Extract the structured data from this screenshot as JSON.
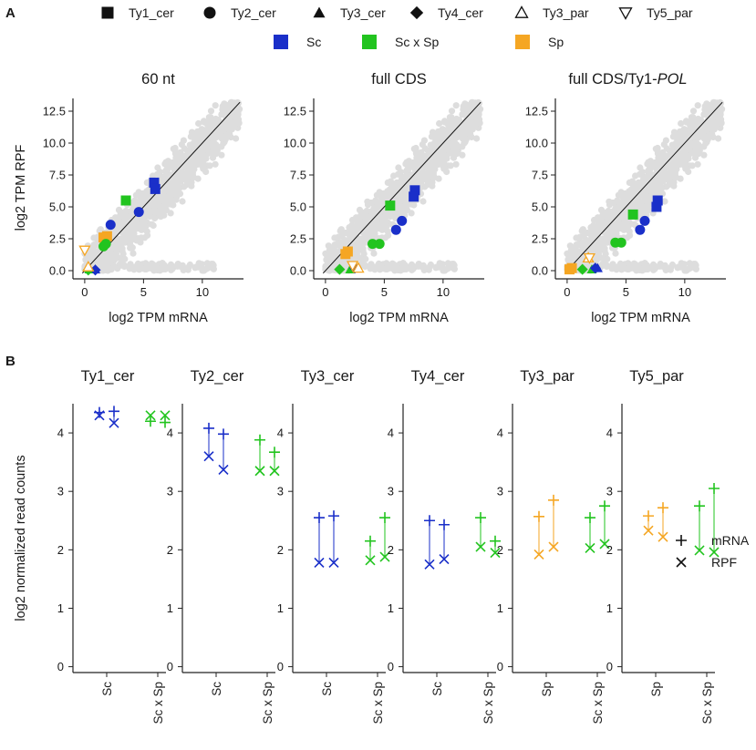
{
  "panel_labels": {
    "a": "A",
    "b": "B"
  },
  "colors": {
    "Sc": "#1a2fc9",
    "ScxSp": "#22c41f",
    "Sp": "#f5a623",
    "background": "#dddddd",
    "axis": "#222222"
  },
  "legend": {
    "markers": [
      {
        "label": "Ty1_cer",
        "marker": "square-icon"
      },
      {
        "label": "Ty2_cer",
        "marker": "circle-icon"
      },
      {
        "label": "Ty3_cer",
        "marker": "triangle-up-icon"
      },
      {
        "label": "Ty4_cer",
        "marker": "diamond-icon"
      },
      {
        "label": "Ty3_par",
        "marker": "triangle-up-open-icon"
      },
      {
        "label": "Ty5_par",
        "marker": "triangle-down-open-icon"
      }
    ],
    "groups": [
      {
        "label": "Sc",
        "color": "#1a2fc9"
      },
      {
        "label": "Sc x Sp",
        "color": "#22c41f"
      },
      {
        "label": "Sp",
        "color": "#f5a623"
      }
    ]
  },
  "chart_data": [
    {
      "id": "a1",
      "type": "scatter",
      "title": "60 nt",
      "title_italic": "",
      "xlabel": "log2 TPM mRNA",
      "ylabel": "log2 TPM RPF",
      "xlim": [
        -1,
        13.5
      ],
      "ylim": [
        -0.5,
        13.5
      ],
      "xticks": [
        0,
        5,
        10
      ],
      "yticks": [
        0.0,
        2.5,
        5.0,
        7.5,
        10.0,
        12.5
      ],
      "ytick_labels": [
        "0.0",
        "2.5",
        "5.0",
        "7.5",
        "10.0",
        "12.5"
      ],
      "background_genes": "genome-wide cloud",
      "diagonal": "y = x",
      "points": [
        {
          "te": "Ty1_cer",
          "group": "Sc",
          "x": 5.9,
          "y": 6.9
        },
        {
          "te": "Ty1_cer",
          "group": "Sc",
          "x": 6.0,
          "y": 6.4
        },
        {
          "te": "Ty1_cer",
          "group": "ScxSp",
          "x": 3.5,
          "y": 5.5
        },
        {
          "te": "Ty1_cer",
          "group": "Sp",
          "x": 1.6,
          "y": 2.6
        },
        {
          "te": "Ty1_cer",
          "group": "Sp",
          "x": 1.9,
          "y": 2.7
        },
        {
          "te": "Ty2_cer",
          "group": "Sc",
          "x": 4.6,
          "y": 4.6
        },
        {
          "te": "Ty2_cer",
          "group": "Sc",
          "x": 2.2,
          "y": 3.6
        },
        {
          "te": "Ty2_cer",
          "group": "ScxSp",
          "x": 1.6,
          "y": 1.9
        },
        {
          "te": "Ty2_cer",
          "group": "ScxSp",
          "x": 1.8,
          "y": 2.1
        },
        {
          "te": "Ty3_cer",
          "group": "Sc",
          "x": 0.9,
          "y": 0.1
        },
        {
          "te": "Ty3_cer",
          "group": "ScxSp",
          "x": 0.4,
          "y": 0.1
        },
        {
          "te": "Ty4_cer",
          "group": "Sc",
          "x": 0.9,
          "y": 0.05
        },
        {
          "te": "Ty4_cer",
          "group": "ScxSp",
          "x": 0.3,
          "y": 0.05
        },
        {
          "te": "Ty3_par",
          "group": "Sp",
          "x": 0.3,
          "y": 0.3
        },
        {
          "te": "Ty5_par",
          "group": "Sp",
          "x": 0.0,
          "y": 1.6
        }
      ]
    },
    {
      "id": "a2",
      "type": "scatter",
      "title": "full CDS",
      "title_italic": "",
      "xlabel": "log2 TPM mRNA",
      "ylabel": "",
      "xlim": [
        -1,
        13.5
      ],
      "ylim": [
        -0.5,
        13.5
      ],
      "xticks": [
        0,
        5,
        10
      ],
      "yticks": [
        0.0,
        2.5,
        5.0,
        7.5,
        10.0,
        12.5
      ],
      "ytick_labels": [
        "0.0",
        "2.5",
        "5.0",
        "7.5",
        "10.0",
        "12.5"
      ],
      "background_genes": "genome-wide cloud",
      "diagonal": "y = x",
      "points": [
        {
          "te": "Ty1_cer",
          "group": "Sc",
          "x": 7.6,
          "y": 6.3
        },
        {
          "te": "Ty1_cer",
          "group": "Sc",
          "x": 7.5,
          "y": 5.8
        },
        {
          "te": "Ty1_cer",
          "group": "ScxSp",
          "x": 5.5,
          "y": 5.1
        },
        {
          "te": "Ty1_cer",
          "group": "Sp",
          "x": 1.9,
          "y": 1.5
        },
        {
          "te": "Ty1_cer",
          "group": "Sp",
          "x": 1.7,
          "y": 1.3
        },
        {
          "te": "Ty2_cer",
          "group": "Sc",
          "x": 6.5,
          "y": 3.9
        },
        {
          "te": "Ty2_cer",
          "group": "Sc",
          "x": 6.0,
          "y": 3.2
        },
        {
          "te": "Ty2_cer",
          "group": "ScxSp",
          "x": 4.0,
          "y": 2.1
        },
        {
          "te": "Ty2_cer",
          "group": "ScxSp",
          "x": 4.6,
          "y": 2.1
        },
        {
          "te": "Ty3_cer",
          "group": "Sc",
          "x": 2.6,
          "y": 0.2
        },
        {
          "te": "Ty3_cer",
          "group": "ScxSp",
          "x": 2.1,
          "y": 0.1
        },
        {
          "te": "Ty4_cer",
          "group": "Sc",
          "x": 2.5,
          "y": 0.2
        },
        {
          "te": "Ty4_cer",
          "group": "ScxSp",
          "x": 1.2,
          "y": 0.1
        },
        {
          "te": "Ty3_par",
          "group": "Sp",
          "x": 2.8,
          "y": 0.2
        },
        {
          "te": "Ty5_par",
          "group": "Sp",
          "x": 2.3,
          "y": 0.4
        }
      ]
    },
    {
      "id": "a3",
      "type": "scatter",
      "title": "full CDS/Ty1-",
      "title_italic": "POL",
      "xlabel": "log2 TPM mRNA",
      "ylabel": "",
      "xlim": [
        -1,
        13.5
      ],
      "ylim": [
        -0.5,
        13.5
      ],
      "xticks": [
        0,
        5,
        10
      ],
      "yticks": [
        0.0,
        2.5,
        5.0,
        7.5,
        10.0,
        12.5
      ],
      "ytick_labels": [
        "0.0",
        "2.5",
        "5.0",
        "7.5",
        "10.0",
        "12.5"
      ],
      "background_genes": "genome-wide cloud",
      "diagonal": "y = x",
      "points": [
        {
          "te": "Ty1_cer",
          "group": "Sc",
          "x": 7.7,
          "y": 5.5
        },
        {
          "te": "Ty1_cer",
          "group": "Sc",
          "x": 7.6,
          "y": 5.0
        },
        {
          "te": "Ty1_cer",
          "group": "ScxSp",
          "x": 5.6,
          "y": 4.4
        },
        {
          "te": "Ty1_cer",
          "group": "Sp",
          "x": 0.4,
          "y": 0.2
        },
        {
          "te": "Ty1_cer",
          "group": "Sp",
          "x": 0.2,
          "y": 0.1
        },
        {
          "te": "Ty2_cer",
          "group": "Sc",
          "x": 6.6,
          "y": 3.9
        },
        {
          "te": "Ty2_cer",
          "group": "Sc",
          "x": 6.2,
          "y": 3.2
        },
        {
          "te": "Ty2_cer",
          "group": "ScxSp",
          "x": 4.1,
          "y": 2.2
        },
        {
          "te": "Ty2_cer",
          "group": "ScxSp",
          "x": 4.6,
          "y": 2.2
        },
        {
          "te": "Ty3_cer",
          "group": "Sc",
          "x": 2.6,
          "y": 0.2
        },
        {
          "te": "Ty3_cer",
          "group": "ScxSp",
          "x": 2.1,
          "y": 0.1
        },
        {
          "te": "Ty4_cer",
          "group": "Sc",
          "x": 2.4,
          "y": 0.2
        },
        {
          "te": "Ty4_cer",
          "group": "ScxSp",
          "x": 1.3,
          "y": 0.1
        },
        {
          "te": "Ty3_par",
          "group": "Sp",
          "x": 1.8,
          "y": 1.0
        },
        {
          "te": "Ty5_par",
          "group": "Sp",
          "x": 1.9,
          "y": 1.0
        }
      ]
    },
    {
      "id": "b",
      "type": "dumbbell",
      "ylabel": "log2 normalized read counts",
      "ylim": [
        -0.1,
        4.5
      ],
      "yticks": [
        0,
        1,
        2,
        3,
        4
      ],
      "legend": [
        {
          "symbol": "+",
          "label": "mRNA"
        },
        {
          "symbol": "×",
          "label": "RPF"
        }
      ],
      "panels": [
        {
          "title": "Ty1_cer",
          "categories": [
            "Sc",
            "Sc x Sp"
          ],
          "colors": [
            "Sc",
            "ScxSp"
          ],
          "replicates": [
            [
              {
                "mRNA": 4.35,
                "RPF": 4.3
              },
              {
                "mRNA": 4.37,
                "RPF": 4.17
              }
            ],
            [
              {
                "mRNA": 4.2,
                "RPF": 4.3
              },
              {
                "mRNA": 4.18,
                "RPF": 4.3
              }
            ]
          ]
        },
        {
          "title": "Ty2_cer",
          "categories": [
            "Sc",
            "Sc x Sp"
          ],
          "colors": [
            "Sc",
            "ScxSp"
          ],
          "replicates": [
            [
              {
                "mRNA": 4.08,
                "RPF": 3.6
              },
              {
                "mRNA": 3.98,
                "RPF": 3.37
              }
            ],
            [
              {
                "mRNA": 3.88,
                "RPF": 3.35
              },
              {
                "mRNA": 3.67,
                "RPF": 3.35
              }
            ]
          ]
        },
        {
          "title": "Ty3_cer",
          "categories": [
            "Sc",
            "Sc x Sp"
          ],
          "colors": [
            "Sc",
            "ScxSp"
          ],
          "replicates": [
            [
              {
                "mRNA": 2.55,
                "RPF": 1.78
              },
              {
                "mRNA": 2.58,
                "RPF": 1.78
              }
            ],
            [
              {
                "mRNA": 2.15,
                "RPF": 1.82
              },
              {
                "mRNA": 2.55,
                "RPF": 1.88
              }
            ]
          ]
        },
        {
          "title": "Ty4_cer",
          "categories": [
            "Sc",
            "Sc x Sp"
          ],
          "colors": [
            "Sc",
            "ScxSp"
          ],
          "replicates": [
            [
              {
                "mRNA": 2.5,
                "RPF": 1.75
              },
              {
                "mRNA": 2.43,
                "RPF": 1.84
              }
            ],
            [
              {
                "mRNA": 2.55,
                "RPF": 2.05
              },
              {
                "mRNA": 2.15,
                "RPF": 1.95
              }
            ]
          ]
        },
        {
          "title": "Ty3_par",
          "categories": [
            "Sp",
            "Sc x Sp"
          ],
          "colors": [
            "Sp",
            "ScxSp"
          ],
          "replicates": [
            [
              {
                "mRNA": 2.57,
                "RPF": 1.92
              },
              {
                "mRNA": 2.85,
                "RPF": 2.05
              }
            ],
            [
              {
                "mRNA": 2.55,
                "RPF": 2.03
              },
              {
                "mRNA": 2.75,
                "RPF": 2.1
              }
            ]
          ]
        },
        {
          "title": "Ty5_par",
          "categories": [
            "Sp",
            "Sc x Sp"
          ],
          "colors": [
            "Sp",
            "ScxSp"
          ],
          "replicates": [
            [
              {
                "mRNA": 2.58,
                "RPF": 2.33
              },
              {
                "mRNA": 2.72,
                "RPF": 2.22
              }
            ],
            [
              {
                "mRNA": 2.75,
                "RPF": 1.99
              },
              {
                "mRNA": 3.05,
                "RPF": 1.96
              }
            ]
          ]
        }
      ]
    }
  ]
}
